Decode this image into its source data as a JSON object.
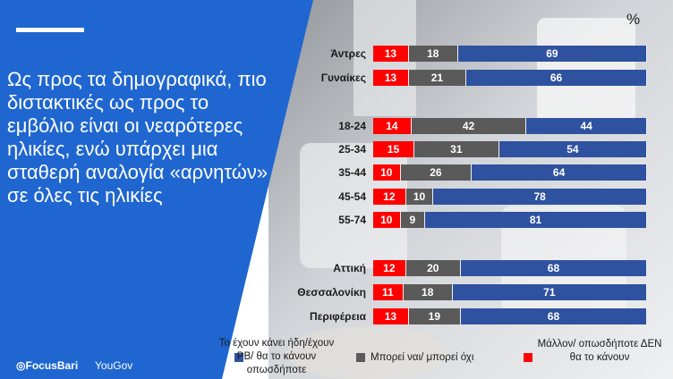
{
  "panel": {
    "headline": "Ως προς τα δημογραφικά, πιο διστακτικές ως προς το εμβόλιο είναι οι νεαρότερες ηλικίες, ενώ υπάρχει μια σταθερή αναλογία «αρνητών» σε όλες τις ηλικίες",
    "logo_focusbari": "FocusBari",
    "logo_yougov": "YouGov"
  },
  "unit_label": "%",
  "colors": {
    "red": "#ff0000",
    "grey": "#5a5a5a",
    "blue": "#2f52a0",
    "panel": "#1f66d0"
  },
  "chart_data": {
    "type": "bar",
    "orientation": "horizontal",
    "stacked": true,
    "categories": [
      "Άντρες",
      "Γυναίκες",
      "18-24",
      "25-34",
      "35-44",
      "45-54",
      "55-74",
      "Αττική",
      "Θεσσαλονίκη",
      "Περιφέρεια"
    ],
    "series": [
      {
        "name": "Μάλλον/ οπωσδήποτε ΔΕΝ θα το κάνουν",
        "color": "#ff0000",
        "values": [
          13,
          13,
          14,
          15,
          10,
          12,
          10,
          12,
          11,
          13
        ]
      },
      {
        "name": "Μπορεί ναι/ μπορεί όχι",
        "color": "#5a5a5a",
        "values": [
          18,
          21,
          42,
          31,
          26,
          10,
          9,
          20,
          18,
          19
        ]
      },
      {
        "name": "Το έχουν κάνει ήδη/έχουν ΡΒ/ θα το κάνουν οπωσδήποτε",
        "color": "#2f52a0",
        "values": [
          69,
          66,
          44,
          54,
          64,
          78,
          81,
          68,
          71,
          68
        ]
      }
    ],
    "legend_order": [
      2,
      1,
      0
    ],
    "legend_position": "bottom"
  }
}
